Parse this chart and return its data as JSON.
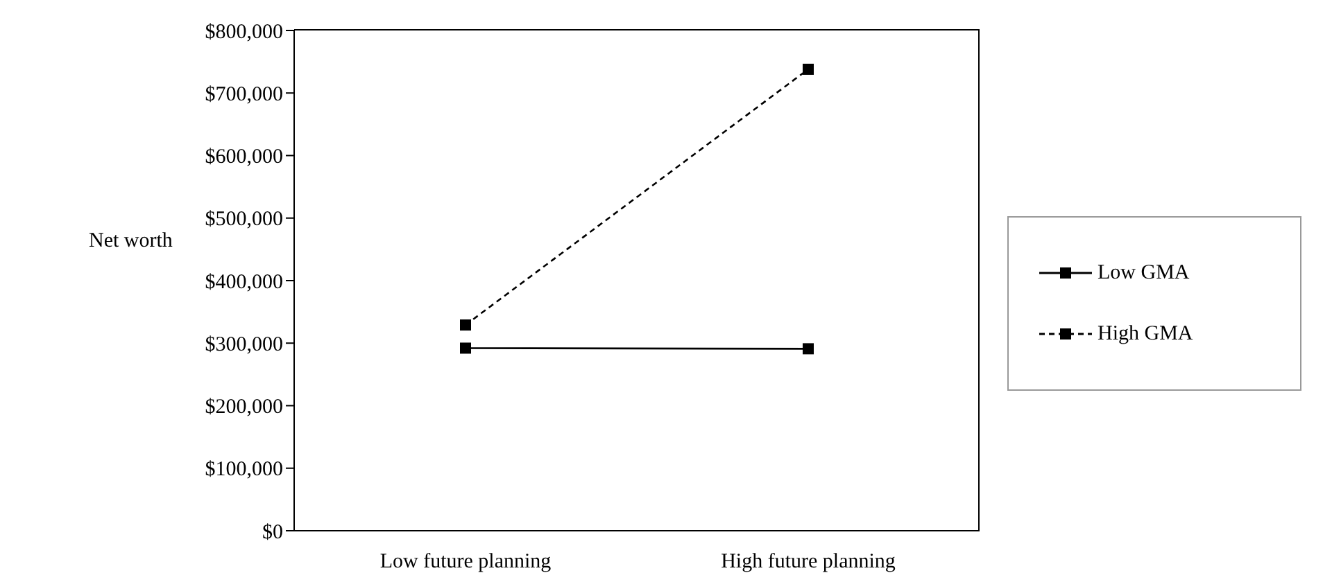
{
  "chart_data": {
    "type": "line",
    "ylabel": "Net worth",
    "categories": [
      "Low future planning",
      "High future planning"
    ],
    "series": [
      {
        "name": "Low GMA",
        "color": "#000000",
        "values": [
          292000,
          291000
        ],
        "line_style": "solid"
      },
      {
        "name": "High GMA",
        "color": "#000000",
        "values": [
          329000,
          738000
        ],
        "line_style": "dashed"
      }
    ],
    "ylim": [
      0,
      800000
    ],
    "yticks": [
      {
        "value": 0,
        "label": "$0"
      },
      {
        "value": 100000,
        "label": "$100,000"
      },
      {
        "value": 200000,
        "label": "$200,000"
      },
      {
        "value": 300000,
        "label": "$300,000"
      },
      {
        "value": 400000,
        "label": "$400,000"
      },
      {
        "value": 500000,
        "label": "$500,000"
      },
      {
        "value": 600000,
        "label": "$600,000"
      },
      {
        "value": 700000,
        "label": "$700,000"
      },
      {
        "value": 800000,
        "label": "$800,000"
      }
    ],
    "grid": false,
    "legend": "right",
    "marker": "square"
  }
}
